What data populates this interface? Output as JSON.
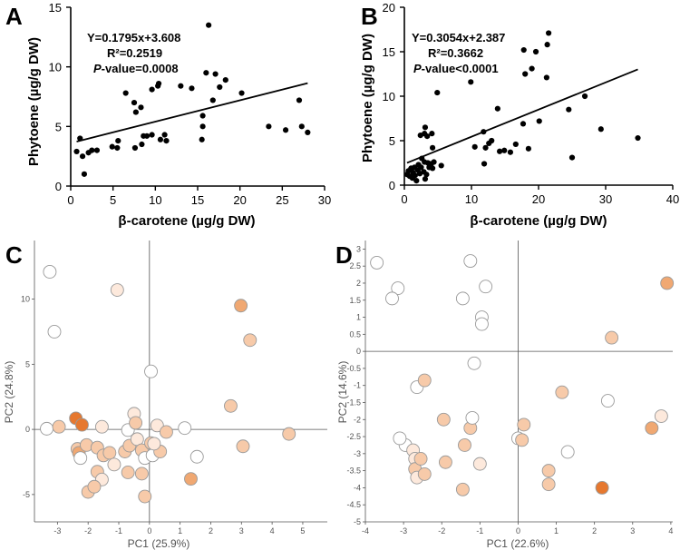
{
  "colors": {
    "scatter_point": "#000000",
    "regression_line": "#000000",
    "pca_stroke": "#9a9a9a",
    "pca_fill_white": "#ffffff",
    "pca_fill_pale": "#fde9dc",
    "pca_fill_light": "#f7caa9",
    "pca_fill_mid": "#f0a872",
    "pca_fill_dark": "#e6782f"
  },
  "chart_data": [
    {
      "panel": "A",
      "type": "scatter",
      "xlabel": "β-carotene (µg/g DW)",
      "ylabel": "Phytoene (µg/g DW)",
      "xlim": [
        0,
        30
      ],
      "ylim": [
        0,
        15
      ],
      "xticks": [
        "0",
        "5",
        "10",
        "15",
        "20",
        "25",
        "30"
      ],
      "yticks": [
        "0",
        "5",
        "10",
        "15"
      ],
      "regression": {
        "slope": 0.1795,
        "intercept": 3.608
      },
      "annotations": [
        "Y=0.1795x+3.608",
        "R²=0.2519",
        "P-value=0.0008"
      ],
      "points": [
        [
          0.7,
          2.9
        ],
        [
          1.1,
          4.0
        ],
        [
          1.4,
          2.5
        ],
        [
          1.6,
          1.0
        ],
        [
          2.1,
          2.8
        ],
        [
          2.5,
          3.0
        ],
        [
          3.1,
          3.0
        ],
        [
          4.9,
          3.3
        ],
        [
          5.5,
          3.2
        ],
        [
          5.6,
          3.8
        ],
        [
          6.5,
          7.8
        ],
        [
          7.5,
          7.0
        ],
        [
          7.7,
          6.2
        ],
        [
          7.6,
          3.2
        ],
        [
          8.3,
          6.6
        ],
        [
          8.4,
          3.5
        ],
        [
          8.6,
          4.2
        ],
        [
          9.0,
          4.2
        ],
        [
          9.6,
          4.3
        ],
        [
          9.6,
          8.1
        ],
        [
          10.3,
          8.4
        ],
        [
          10.4,
          8.6
        ],
        [
          10.6,
          3.9
        ],
        [
          11.1,
          4.3
        ],
        [
          11.3,
          3.8
        ],
        [
          13.0,
          8.4
        ],
        [
          14.3,
          8.2
        ],
        [
          15.6,
          5.9
        ],
        [
          15.6,
          5.0
        ],
        [
          15.5,
          3.9
        ],
        [
          16.0,
          9.5
        ],
        [
          16.3,
          13.5
        ],
        [
          16.8,
          7.2
        ],
        [
          17.1,
          9.4
        ],
        [
          17.6,
          8.3
        ],
        [
          18.3,
          8.9
        ],
        [
          20.2,
          7.8
        ],
        [
          23.4,
          5.0
        ],
        [
          25.4,
          4.7
        ],
        [
          27.0,
          7.2
        ],
        [
          27.3,
          5.0
        ],
        [
          28.0,
          4.5
        ]
      ]
    },
    {
      "panel": "B",
      "type": "scatter",
      "xlabel": "β-carotene (µg/g DW)",
      "ylabel": "Phytoene (µg/g DW)",
      "xlim": [
        0,
        40
      ],
      "ylim": [
        0,
        20
      ],
      "xticks": [
        "0",
        "10",
        "20",
        "30",
        "40"
      ],
      "yticks": [
        "0",
        "5",
        "10",
        "15",
        "20"
      ],
      "regression": {
        "slope": 0.3054,
        "intercept": 2.387
      },
      "annotations": [
        "Y=0.3054x+2.387",
        "R²=0.3662",
        "P-value<0.0001"
      ],
      "points": [
        [
          0.4,
          1.2
        ],
        [
          0.6,
          1.6
        ],
        [
          0.8,
          1.0
        ],
        [
          1.0,
          1.9
        ],
        [
          1.2,
          0.8
        ],
        [
          1.3,
          1.4
        ],
        [
          1.5,
          2.0
        ],
        [
          1.6,
          1.1
        ],
        [
          1.8,
          0.5
        ],
        [
          2.0,
          1.7
        ],
        [
          2.1,
          2.3
        ],
        [
          2.3,
          1.3
        ],
        [
          2.5,
          2.0
        ],
        [
          2.6,
          3.0
        ],
        [
          2.9,
          1.5
        ],
        [
          3.1,
          0.7
        ],
        [
          3.3,
          1.2
        ],
        [
          3.5,
          2.5
        ],
        [
          3.7,
          2.0
        ],
        [
          4.0,
          2.4
        ],
        [
          4.2,
          1.9
        ],
        [
          4.4,
          2.6
        ],
        [
          3.0,
          5.8
        ],
        [
          3.1,
          6.5
        ],
        [
          3.4,
          5.5
        ],
        [
          4.1,
          5.8
        ],
        [
          4.2,
          4.2
        ],
        [
          4.9,
          10.4
        ],
        [
          5.5,
          2.2
        ],
        [
          2.4,
          5.6
        ],
        [
          3.0,
          2.6
        ],
        [
          9.9,
          11.6
        ],
        [
          10.5,
          4.3
        ],
        [
          11.8,
          6.0
        ],
        [
          11.9,
          2.4
        ],
        [
          12.1,
          4.2
        ],
        [
          12.6,
          4.7
        ],
        [
          13.0,
          5.0
        ],
        [
          13.9,
          8.6
        ],
        [
          14.2,
          3.8
        ],
        [
          14.9,
          3.9
        ],
        [
          15.8,
          3.7
        ],
        [
          16.6,
          4.6
        ],
        [
          17.7,
          6.9
        ],
        [
          17.8,
          15.2
        ],
        [
          18.0,
          12.5
        ],
        [
          18.5,
          4.1
        ],
        [
          19.0,
          13.1
        ],
        [
          19.6,
          15.0
        ],
        [
          20.1,
          7.2
        ],
        [
          21.2,
          12.1
        ],
        [
          21.3,
          15.8
        ],
        [
          21.5,
          17.1
        ],
        [
          25.0,
          3.1
        ],
        [
          26.9,
          10.0
        ],
        [
          29.3,
          6.3
        ],
        [
          34.8,
          5.3
        ],
        [
          24.5,
          8.5
        ]
      ]
    },
    {
      "panel": "C",
      "type": "scatter",
      "xlabel": "PC1 (25.9%)",
      "ylabel": "PC2 (24.8%)",
      "xlim": [
        -3.75,
        5.8
      ],
      "ylim": [
        -7.1,
        14.5
      ],
      "xticks": [
        "-3",
        "-2",
        "-1",
        "0",
        "1",
        "2",
        "3",
        "4",
        "5"
      ],
      "yticks": [
        "-5",
        "0",
        "5",
        "10"
      ],
      "points": [
        [
          -3.25,
          12.1,
          "white"
        ],
        [
          -3.1,
          7.5,
          "white"
        ],
        [
          -1.05,
          10.7,
          "pale"
        ],
        [
          2.98,
          9.5,
          "mid"
        ],
        [
          3.28,
          6.85,
          "light"
        ],
        [
          0.05,
          4.45,
          "white"
        ],
        [
          2.65,
          1.8,
          "light"
        ],
        [
          -3.35,
          0.05,
          "white"
        ],
        [
          -2.95,
          0.2,
          "light"
        ],
        [
          -2.4,
          0.85,
          "dark"
        ],
        [
          -2.2,
          0.35,
          "dark"
        ],
        [
          -1.55,
          0.2,
          "pale"
        ],
        [
          -0.7,
          -0.05,
          "white"
        ],
        [
          -0.5,
          1.2,
          "pale"
        ],
        [
          -0.45,
          0.5,
          "light"
        ],
        [
          0.25,
          0.3,
          "pale"
        ],
        [
          0.55,
          -0.2,
          "light"
        ],
        [
          1.15,
          0.1,
          "white"
        ],
        [
          4.55,
          -0.35,
          "light"
        ],
        [
          3.05,
          -1.3,
          "light"
        ],
        [
          -2.35,
          -1.5,
          "light"
        ],
        [
          -2.3,
          -1.8,
          "mid"
        ],
        [
          -2.25,
          -2.2,
          "white"
        ],
        [
          -2.05,
          -1.2,
          "light"
        ],
        [
          -1.7,
          -1.4,
          "light"
        ],
        [
          -1.5,
          -2.0,
          "light"
        ],
        [
          -1.3,
          -1.8,
          "light"
        ],
        [
          -1.15,
          -2.7,
          "pale"
        ],
        [
          -0.8,
          -1.7,
          "light"
        ],
        [
          -0.65,
          -1.25,
          "light"
        ],
        [
          -0.4,
          -0.75,
          "pale"
        ],
        [
          -0.25,
          -1.6,
          "light"
        ],
        [
          -0.15,
          -2.2,
          "white"
        ],
        [
          0.05,
          -1.05,
          "light"
        ],
        [
          0.1,
          -2.0,
          "white"
        ],
        [
          0.35,
          -1.7,
          "light"
        ],
        [
          0.15,
          -1.1,
          "pale"
        ],
        [
          1.55,
          -2.1,
          "white"
        ],
        [
          -1.7,
          -3.25,
          "light"
        ],
        [
          -1.55,
          -3.85,
          "pale"
        ],
        [
          -2.0,
          -4.8,
          "light"
        ],
        [
          -1.8,
          -4.4,
          "light"
        ],
        [
          -0.7,
          -3.3,
          "light"
        ],
        [
          -0.25,
          -3.4,
          "light"
        ],
        [
          1.35,
          -3.8,
          "mid"
        ],
        [
          -0.15,
          -5.15,
          "light"
        ]
      ]
    },
    {
      "panel": "D",
      "type": "scatter",
      "xlabel": "PC1 (22.6%)",
      "ylabel": "PC2 (14.6%)",
      "xlim": [
        -4.0,
        4.05
      ],
      "ylim": [
        -5.0,
        3.25
      ],
      "xticks": [
        "-4",
        "-3",
        "-2",
        "-1",
        "0",
        "1",
        "2",
        "3",
        "4"
      ],
      "yticks": [
        "-5",
        "-4.5",
        "-4",
        "-3.5",
        "-3",
        "-2.5",
        "-2",
        "-1.5",
        "-1",
        "-0.5",
        "0",
        "0.5",
        "1",
        "1.5",
        "2",
        "2.5",
        "3"
      ],
      "points": [
        [
          -3.7,
          2.6,
          "white"
        ],
        [
          -3.15,
          1.85,
          "white"
        ],
        [
          -3.3,
          1.55,
          "white"
        ],
        [
          -1.25,
          2.65,
          "white"
        ],
        [
          -1.45,
          1.55,
          "white"
        ],
        [
          -0.85,
          1.9,
          "white"
        ],
        [
          -0.95,
          1.0,
          "white"
        ],
        [
          -0.95,
          0.8,
          "white"
        ],
        [
          3.9,
          2.0,
          "mid"
        ],
        [
          2.45,
          0.4,
          "light"
        ],
        [
          -1.15,
          -0.35,
          "white"
        ],
        [
          -2.65,
          -1.05,
          "white"
        ],
        [
          -2.45,
          -0.85,
          "light"
        ],
        [
          -1.95,
          -2.0,
          "light"
        ],
        [
          -1.25,
          -2.25,
          "light"
        ],
        [
          -1.2,
          -1.95,
          "white"
        ],
        [
          -2.95,
          -2.75,
          "white"
        ],
        [
          -3.1,
          -2.55,
          "white"
        ],
        [
          -2.75,
          -2.9,
          "pale"
        ],
        [
          -2.7,
          -3.15,
          "pale"
        ],
        [
          -2.7,
          -3.45,
          "light"
        ],
        [
          -2.65,
          -3.7,
          "pale"
        ],
        [
          -2.55,
          -3.15,
          "light"
        ],
        [
          -2.45,
          -3.6,
          "light"
        ],
        [
          -1.9,
          -3.25,
          "light"
        ],
        [
          -1.4,
          -2.75,
          "light"
        ],
        [
          -1.0,
          -3.3,
          "pale"
        ],
        [
          -1.45,
          -4.05,
          "light"
        ],
        [
          0.0,
          -2.55,
          "white"
        ],
        [
          0.1,
          -2.6,
          "light"
        ],
        [
          0.15,
          -2.15,
          "light"
        ],
        [
          1.15,
          -1.2,
          "light"
        ],
        [
          1.3,
          -2.95,
          "white"
        ],
        [
          0.8,
          -3.5,
          "light"
        ],
        [
          0.8,
          -3.9,
          "light"
        ],
        [
          2.35,
          -1.45,
          "white"
        ],
        [
          2.2,
          -4.0,
          "dark"
        ],
        [
          3.5,
          -2.25,
          "mid"
        ],
        [
          3.75,
          -1.9,
          "pale"
        ]
      ]
    }
  ]
}
